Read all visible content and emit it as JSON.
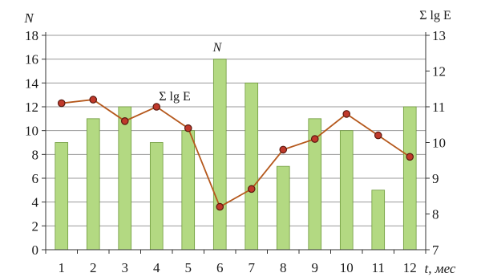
{
  "chart_data": {
    "type": "bar",
    "categories": [
      "1",
      "2",
      "3",
      "4",
      "5",
      "6",
      "7",
      "8",
      "9",
      "10",
      "11",
      "12"
    ],
    "series": [
      {
        "name": "N",
        "type": "bar",
        "axis": "left",
        "values": [
          9,
          11,
          12,
          9,
          10,
          16,
          14,
          7,
          11,
          10,
          5,
          12
        ]
      },
      {
        "name": "Σ lg E",
        "type": "line",
        "axis": "right",
        "values": [
          11.1,
          11.2,
          10.6,
          11.0,
          10.4,
          8.2,
          8.7,
          9.8,
          10.1,
          10.8,
          10.2,
          9.6
        ]
      }
    ],
    "left_axis": {
      "label": "N",
      "ylim": [
        0,
        18
      ],
      "ticks": [
        "0",
        "2",
        "4",
        "6",
        "8",
        "10",
        "12",
        "14",
        "16",
        "18"
      ]
    },
    "right_axis": {
      "label": "Σ lg E",
      "ylim": [
        7,
        13
      ],
      "ticks": [
        "7",
        "8",
        "9",
        "10",
        "11",
        "12",
        "13"
      ]
    },
    "x_axis": {
      "label": "t, мес"
    },
    "grid": "horizontal",
    "colors": {
      "bar_fill": "#b3d982",
      "bar_stroke": "#6f9a3c",
      "line": "#b5581c",
      "marker_fill": "#c0392b",
      "marker_stroke": "#5a1a10",
      "grid": "#9a9a9a"
    }
  }
}
